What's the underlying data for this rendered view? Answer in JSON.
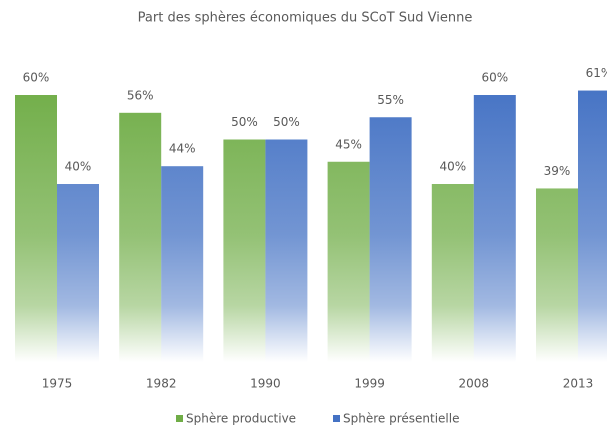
{
  "chart_data": {
    "type": "bar",
    "title": "Part des sphères économiques du SCoT Sud Vienne",
    "categories": [
      "1975",
      "1982",
      "1990",
      "1999",
      "2008",
      "2013"
    ],
    "series": [
      {
        "name": "Sphère productive",
        "color": "#70ad47",
        "values": [
          60,
          56,
          50,
          45,
          40,
          39
        ],
        "value_labels": [
          "60%",
          "56%",
          "50%",
          "45%",
          "40%",
          "39%"
        ]
      },
      {
        "name": "Sphère présentielle",
        "color": "#4472c4",
        "values": [
          40,
          44,
          50,
          55,
          60,
          61
        ],
        "value_labels": [
          "40%",
          "44%",
          "50%",
          "55%",
          "60%",
          "61%"
        ]
      }
    ],
    "legend": "bottom"
  }
}
